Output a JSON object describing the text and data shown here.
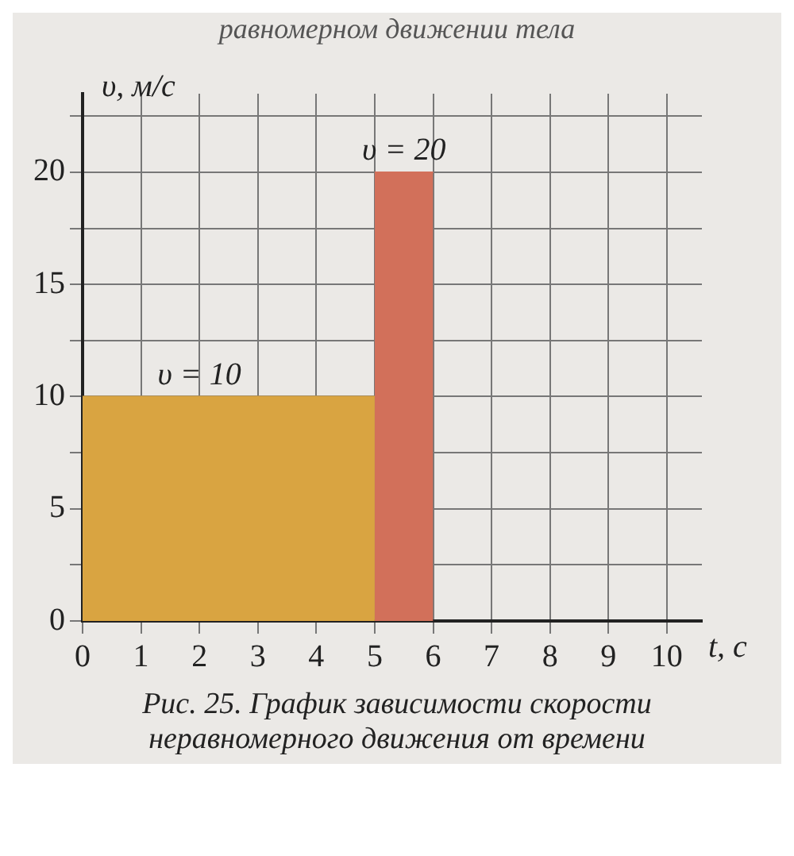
{
  "chart_data": {
    "type": "area",
    "title": "равномерном движении тела",
    "xlabel": "t, с",
    "ylabel": "υ, м/с",
    "series": [
      {
        "x": [
          0,
          5
        ],
        "values": [
          10,
          10
        ],
        "color": "#d9a441"
      },
      {
        "x": [
          5,
          6
        ],
        "values": [
          20,
          20
        ],
        "color": "#d2705a"
      }
    ],
    "xlim": [
      0,
      10.6
    ],
    "xticks": [
      0,
      1,
      2,
      3,
      4,
      5,
      6,
      7,
      8,
      9,
      10
    ],
    "ylim": [
      0,
      23.5
    ],
    "yticks": [
      0,
      {
        "value": 2.5,
        "label": null
      },
      5,
      {
        "value": 7.5,
        "label": null
      },
      10,
      {
        "value": 12.5,
        "label": null
      },
      15,
      {
        "value": 17.5,
        "label": null
      },
      20,
      {
        "value": 22.5,
        "label": null
      }
    ],
    "grid": true,
    "legend": false,
    "annotations": [
      {
        "text": "υ = 10",
        "x": 2,
        "y": 10
      },
      {
        "text": "υ = 20",
        "x": 5.5,
        "y": 20
      },
      "Рис. 25. График зависимости скорости неравномерного движения от времени"
    ]
  }
}
